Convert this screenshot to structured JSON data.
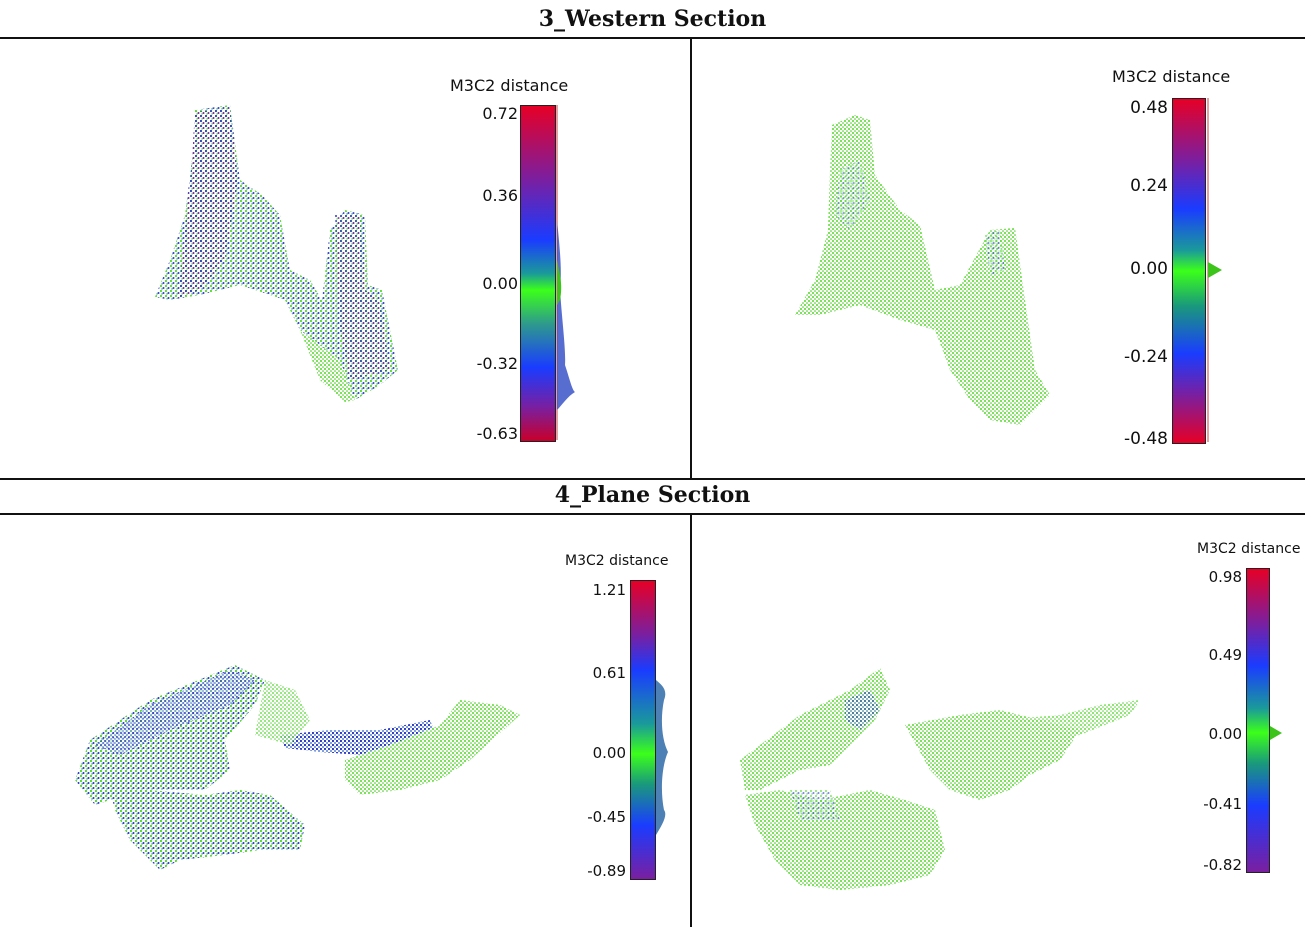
{
  "sections": [
    {
      "title": "3_Western Section",
      "panels": [
        {
          "scale": {
            "title": "M3C2 distance",
            "ticks": [
              "0.72",
              "0.36",
              "0.00",
              "-0.32",
              "-0.63"
            ],
            "histogram": "spread"
          }
        },
        {
          "scale": {
            "title": "M3C2 distance",
            "ticks": [
              "0.48",
              "0.24",
              "0.00",
              "-0.24",
              "-0.48"
            ],
            "histogram": "peak-at-zero"
          }
        }
      ]
    },
    {
      "title": "4_Plane Section",
      "panels": [
        {
          "scale": {
            "title": "M3C2 distance",
            "ticks": [
              "1.21",
              "0.61",
              "0.00",
              "-0.45",
              "-0.89"
            ],
            "histogram": "spread"
          }
        },
        {
          "scale": {
            "title": "M3C2 distance",
            "ticks": [
              "0.98",
              "0.49",
              "0.00",
              "-0.41",
              "-0.82"
            ],
            "histogram": "peak-at-zero"
          }
        }
      ]
    }
  ],
  "colors": {
    "scale_top": "#e60026",
    "scale_upper": "#7a1fa0",
    "scale_mid_upper": "#1a3cff",
    "scale_zero": "#3cff1a",
    "scale_mid_lower": "#1a3cff",
    "scale_lower": "#7a1fa0",
    "scale_bottom": "#c8002a",
    "point_green": "#4ddc1f",
    "point_blue": "#2230c8",
    "point_purple": "#7a1f8c"
  }
}
